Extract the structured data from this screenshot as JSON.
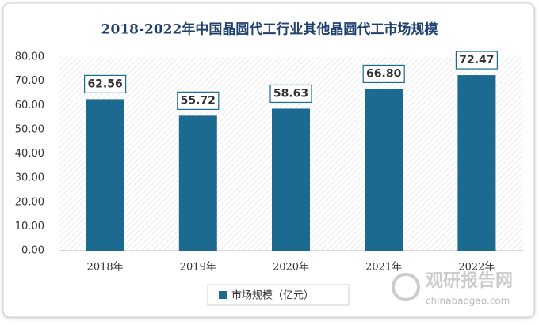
{
  "chart_data": {
    "type": "bar",
    "title": "2018-2022年中国晶圆代工行业其他晶圆代工市场规模",
    "categories": [
      "2018年",
      "2019年",
      "2020年",
      "2021年",
      "2022年"
    ],
    "series": [
      {
        "name": "市场规模（亿元）",
        "color": "#1c6a8f",
        "values": [
          62.56,
          55.72,
          58.63,
          66.8,
          72.47
        ],
        "value_labels": [
          "62.56",
          "55.72",
          "58.63",
          "66.80",
          "72.47"
        ]
      }
    ],
    "ylim": [
      0,
      80
    ],
    "yticks": [
      {
        "value": 0,
        "label": "0.00"
      },
      {
        "value": 10,
        "label": "10.00"
      },
      {
        "value": 20,
        "label": "20.00"
      },
      {
        "value": 30,
        "label": "30.00"
      },
      {
        "value": 40,
        "label": "40.00"
      },
      {
        "value": 50,
        "label": "50.00"
      },
      {
        "value": 60,
        "label": "60.00"
      },
      {
        "value": 70,
        "label": "70.00"
      },
      {
        "value": 80,
        "label": "80.00"
      }
    ],
    "legend": "bottom",
    "watermark": {
      "name": "观研报告网",
      "url": "chinabaogao.com"
    }
  }
}
